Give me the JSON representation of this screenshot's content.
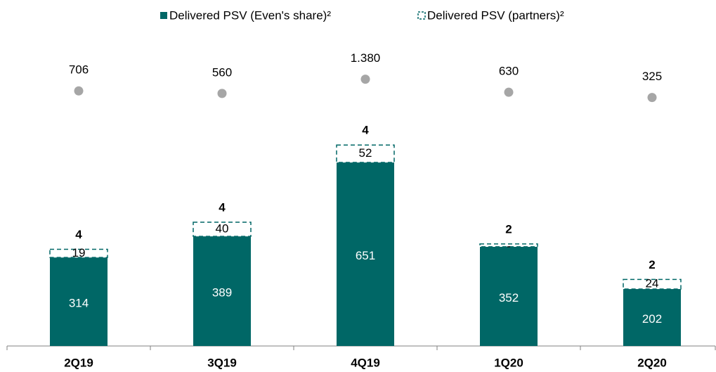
{
  "chart_data": {
    "type": "bar",
    "categories": [
      "2Q19",
      "3Q19",
      "4Q19",
      "1Q20",
      "2Q20"
    ],
    "series": [
      {
        "name": "Delivered PSV (Even's share)²",
        "color": "#006766",
        "style": "solid",
        "values": [
          314,
          389,
          651,
          352,
          202
        ]
      },
      {
        "name": "Delivered PSV (partners)²",
        "color": "#006766",
        "style": "dashed",
        "values": [
          19,
          40,
          52,
          0,
          24
        ],
        "value_labels": [
          "19",
          "40",
          "52",
          "-",
          "24"
        ]
      },
      {
        "type": "scatter",
        "axis": "y2",
        "color": "#a6a6a6",
        "values": [
          706,
          560,
          1380,
          630,
          325
        ],
        "value_labels": [
          "706",
          "560",
          "1.380",
          "630",
          "325"
        ]
      }
    ],
    "counts": [
      4,
      4,
      4,
      2,
      2
    ],
    "ylim": [
      0,
      1200
    ],
    "y2lim": [
      -14000,
      5500
    ],
    "legend": "top"
  }
}
